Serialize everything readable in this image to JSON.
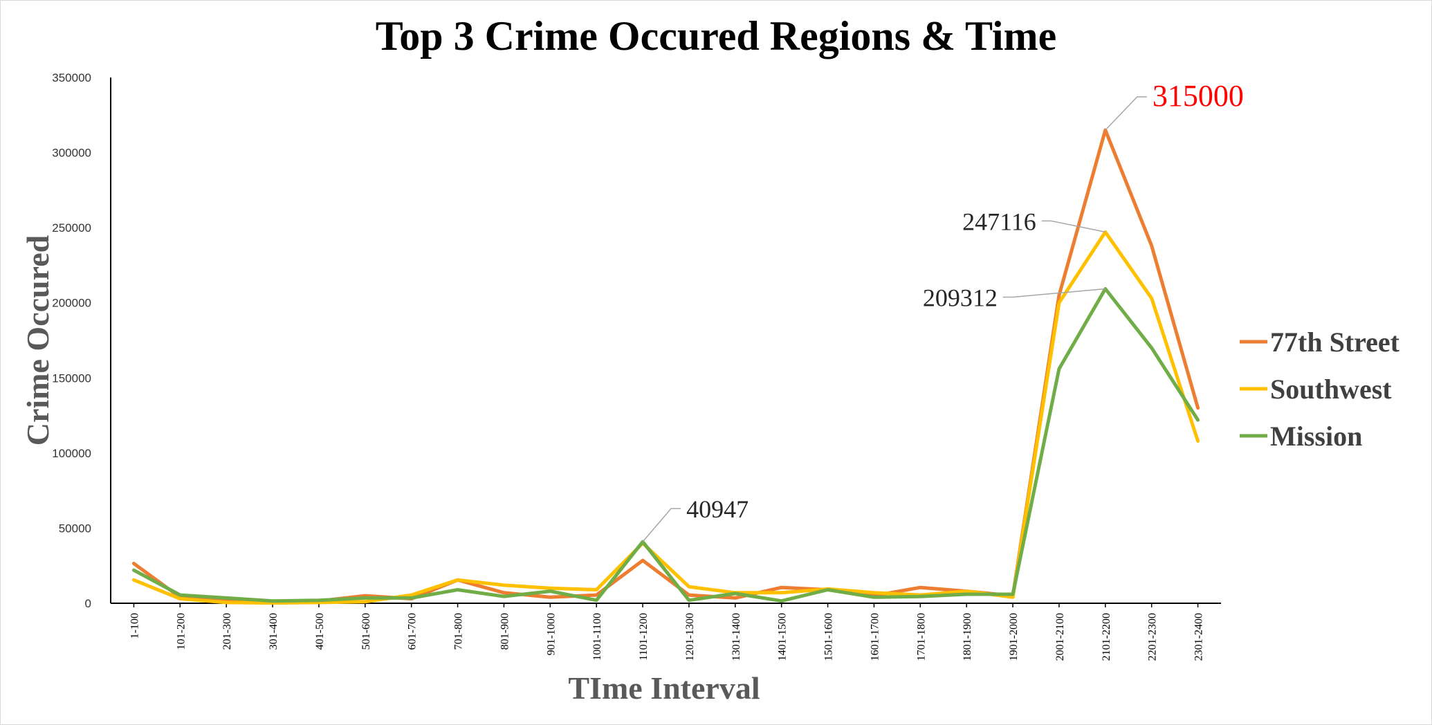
{
  "chart_data": {
    "type": "line",
    "title": "Top 3 Crime Occured Regions & Time",
    "xlabel": "TIme Interval",
    "ylabel": "Crime Occured",
    "ylim": [
      0,
      350000
    ],
    "yticks": [
      "0",
      "50000",
      "100000",
      "150000",
      "200000",
      "250000",
      "300000",
      "350000"
    ],
    "grid": false,
    "legend_position": "right",
    "categories": [
      "1-100",
      "101-200",
      "201-300",
      "301-400",
      "401-500",
      "501-600",
      "601-700",
      "701-800",
      "801-900",
      "901-1000",
      "1001-1100",
      "1101-1200",
      "1201-1300",
      "1301-1400",
      "1401-1500",
      "1501-1600",
      "1601-1700",
      "1701-1800",
      "1801-1900",
      "1901-2000",
      "2001-2100",
      "2101-2200",
      "2201-2300",
      "2301-2400"
    ],
    "series": [
      {
        "name": "77th Street",
        "color": "#ed7d31",
        "values": [
          26500,
          4000,
          1500,
          500,
          1500,
          5000,
          3000,
          15500,
          7000,
          4000,
          5500,
          28500,
          5500,
          3500,
          10500,
          9000,
          5000,
          10500,
          8000,
          5000,
          205000,
          315000,
          238000,
          130000
        ]
      },
      {
        "name": "Southwest",
        "color": "#ffc000",
        "values": [
          15500,
          3000,
          500,
          200,
          500,
          1000,
          5500,
          15500,
          12000,
          10000,
          9000,
          40000,
          11000,
          7000,
          7000,
          9500,
          7000,
          5500,
          8000,
          4000,
          200000,
          247116,
          203000,
          108000
        ]
      },
      {
        "name": "Mission",
        "color": "#70ad47",
        "values": [
          22000,
          5500,
          3500,
          1500,
          2000,
          3500,
          3500,
          9000,
          4500,
          8000,
          2000,
          40947,
          2000,
          6500,
          1500,
          9000,
          4000,
          4500,
          6000,
          6000,
          156000,
          209312,
          170000,
          122000
        ]
      }
    ],
    "annotations": [
      {
        "text": "315000",
        "series": 0,
        "index": 21,
        "color": "#ff0000"
      },
      {
        "text": "247116",
        "series": 1,
        "index": 21,
        "color": "#262626"
      },
      {
        "text": "209312",
        "series": 2,
        "index": 21,
        "color": "#262626"
      },
      {
        "text": "40947",
        "series": 2,
        "index": 11,
        "color": "#262626"
      }
    ]
  }
}
